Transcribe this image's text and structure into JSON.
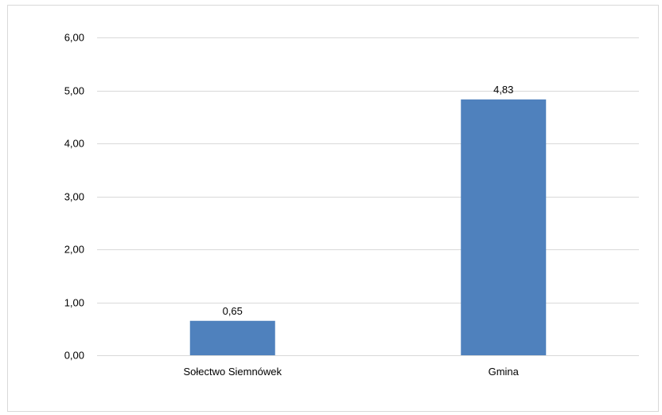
{
  "chart_data": {
    "type": "bar",
    "categories": [
      "Sołectwo Siemnówek",
      "Gmina"
    ],
    "values": [
      0.65,
      4.83
    ],
    "value_labels": [
      "0,65",
      "4,83"
    ],
    "ylim": [
      0,
      6
    ],
    "y_ticks": [
      0,
      1,
      2,
      3,
      4,
      5,
      6
    ],
    "y_tick_labels": [
      "0,00",
      "1,00",
      "2,00",
      "3,00",
      "4,00",
      "5,00",
      "6,00"
    ],
    "grid": true,
    "bar_color": "#4f81bd",
    "grid_color": "#d9d9d9"
  }
}
